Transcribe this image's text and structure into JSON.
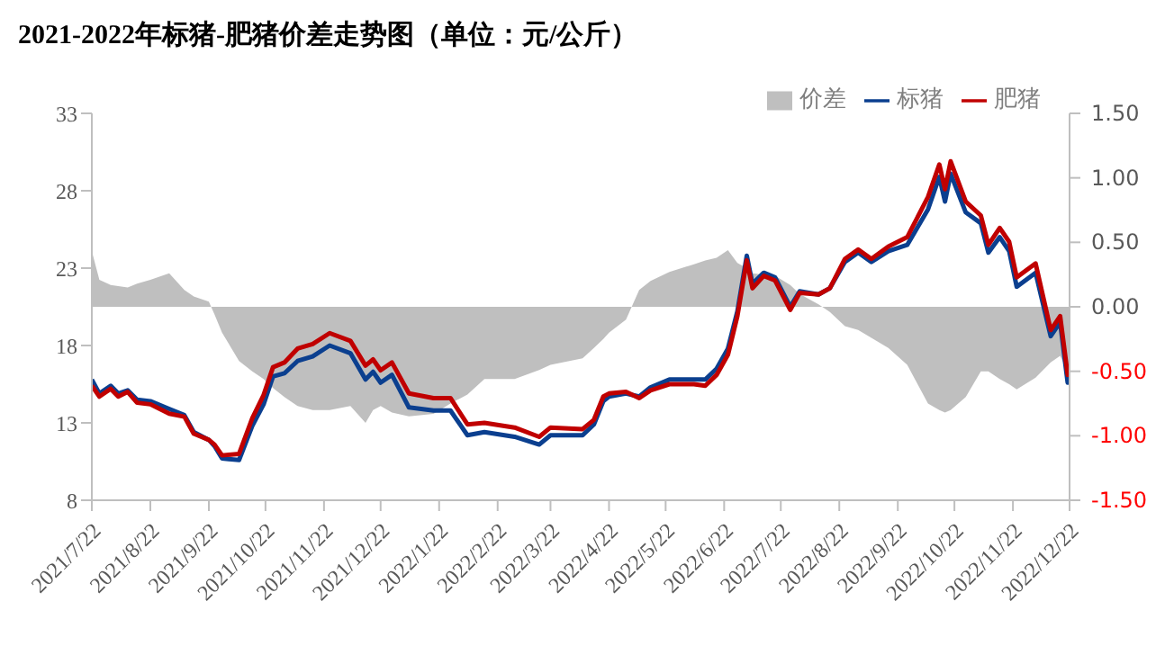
{
  "chart_data": {
    "type": "line",
    "title": "2021-2022年标猪-肥猪价差走势图（单位：元/公斤）",
    "x": [
      "2021-07-22",
      "2021-07-26",
      "2021-08-01",
      "2021-08-05",
      "2021-08-10",
      "2021-08-15",
      "2021-08-22",
      "2021-09-01",
      "2021-09-09",
      "2021-09-14",
      "2021-09-22",
      "2021-09-25",
      "2021-09-29",
      "2021-10-08",
      "2021-10-15",
      "2021-10-21",
      "2021-10-26",
      "2021-11-01",
      "2021-11-08",
      "2021-11-16",
      "2021-11-25",
      "2021-12-06",
      "2021-12-14",
      "2021-12-18",
      "2021-12-22",
      "2021-12-28",
      "2022-01-06",
      "2022-01-19",
      "2022-01-28",
      "2022-02-06",
      "2022-02-15",
      "2022-03-03",
      "2022-03-16",
      "2022-03-22",
      "2022-04-08",
      "2022-04-14",
      "2022-04-19",
      "2022-04-22",
      "2022-05-01",
      "2022-05-08",
      "2022-05-14",
      "2022-05-24",
      "2022-06-06",
      "2022-06-12",
      "2022-06-18",
      "2022-06-24",
      "2022-06-29",
      "2022-07-04",
      "2022-07-07",
      "2022-07-13",
      "2022-07-19",
      "2022-07-27",
      "2022-08-01",
      "2022-08-11",
      "2022-08-17",
      "2022-08-25",
      "2022-09-01",
      "2022-09-08",
      "2022-09-17",
      "2022-09-27",
      "2022-10-08",
      "2022-10-14",
      "2022-10-17",
      "2022-10-20",
      "2022-10-28",
      "2022-11-05",
      "2022-11-09",
      "2022-11-15",
      "2022-11-20",
      "2022-11-24",
      "2022-12-04",
      "2022-12-12",
      "2022-12-17",
      "2022-12-21",
      "2022-12-22"
    ],
    "series": [
      {
        "name": "价差",
        "type": "area",
        "axis": "y2",
        "color": "#bfbfbf",
        "values": [
          0.43,
          0.21,
          0.17,
          0.16,
          0.15,
          0.18,
          0.21,
          0.26,
          0.13,
          0.08,
          0.04,
          -0.06,
          -0.2,
          -0.42,
          -0.5,
          -0.56,
          -0.63,
          -0.7,
          -0.77,
          -0.8,
          -0.8,
          -0.77,
          -0.9,
          -0.8,
          -0.77,
          -0.82,
          -0.85,
          -0.83,
          -0.75,
          -0.68,
          -0.56,
          -0.56,
          -0.49,
          -0.45,
          -0.4,
          -0.32,
          -0.25,
          -0.2,
          -0.1,
          0.13,
          0.2,
          0.27,
          0.33,
          0.36,
          0.38,
          0.44,
          0.34,
          0.3,
          0.26,
          0.25,
          0.24,
          0.17,
          0.1,
          0.02,
          -0.04,
          -0.15,
          -0.18,
          -0.24,
          -0.32,
          -0.45,
          -0.75,
          -0.8,
          -0.82,
          -0.8,
          -0.7,
          -0.5,
          -0.5,
          -0.56,
          -0.6,
          -0.64,
          -0.55,
          -0.43,
          -0.38,
          -0.5,
          -0.6
        ]
      },
      {
        "name": "标猪",
        "color": "#0b3f8f",
        "values": [
          15.8,
          14.9,
          15.4,
          14.9,
          15.1,
          14.5,
          14.4,
          13.9,
          13.5,
          12.4,
          11.9,
          11.5,
          10.7,
          10.6,
          12.8,
          14.2,
          16.0,
          16.2,
          17.0,
          17.3,
          18.0,
          17.5,
          15.8,
          16.3,
          15.6,
          16.1,
          14.0,
          13.8,
          13.8,
          12.2,
          12.4,
          12.1,
          11.6,
          12.2,
          12.2,
          12.9,
          14.4,
          14.7,
          14.9,
          14.7,
          15.3,
          15.8,
          15.8,
          15.8,
          16.5,
          17.8,
          20.2,
          23.8,
          22.0,
          22.7,
          22.4,
          20.5,
          21.5,
          21.3,
          21.7,
          23.4,
          24.0,
          23.4,
          24.1,
          24.5,
          26.8,
          28.9,
          27.3,
          29.1,
          26.6,
          25.9,
          24.0,
          25.0,
          24.1,
          21.8,
          22.7,
          18.6,
          19.5,
          15.6,
          16.0
        ]
      },
      {
        "name": "肥猪",
        "color": "#c00000",
        "values": [
          15.4,
          14.7,
          15.2,
          14.7,
          15.0,
          14.3,
          14.2,
          13.6,
          13.4,
          12.3,
          11.9,
          11.6,
          10.9,
          11.0,
          13.3,
          14.8,
          16.6,
          16.9,
          17.8,
          18.1,
          18.8,
          18.3,
          16.7,
          17.1,
          16.4,
          16.9,
          14.9,
          14.6,
          14.6,
          12.9,
          13.0,
          12.7,
          12.1,
          12.7,
          12.6,
          13.2,
          14.7,
          14.9,
          15.0,
          14.6,
          15.1,
          15.5,
          15.5,
          15.4,
          16.1,
          17.4,
          19.9,
          23.5,
          21.7,
          22.5,
          22.2,
          20.3,
          21.4,
          21.3,
          21.7,
          23.6,
          24.2,
          23.6,
          24.4,
          25.0,
          27.6,
          29.7,
          28.1,
          29.9,
          27.3,
          26.4,
          24.5,
          25.6,
          24.7,
          22.4,
          23.3,
          19.0,
          19.9,
          16.1,
          16.6
        ]
      }
    ],
    "xlim": [
      "2021-07-22",
      "2022-12-22"
    ],
    "xticks": [
      {
        "value": "2021-07-22",
        "label": "2021/7/22"
      },
      {
        "value": "2021-08-22",
        "label": "2021/8/22"
      },
      {
        "value": "2021-09-22",
        "label": "2021/9/22"
      },
      {
        "value": "2021-10-22",
        "label": "2021/10/22"
      },
      {
        "value": "2021-11-22",
        "label": "2021/11/22"
      },
      {
        "value": "2021-12-22",
        "label": "2021/12/22"
      },
      {
        "value": "2022-01-22",
        "label": "2022/1/22"
      },
      {
        "value": "2022-02-22",
        "label": "2022/2/22"
      },
      {
        "value": "2022-03-22",
        "label": "2022/3/22"
      },
      {
        "value": "2022-04-22",
        "label": "2022/4/22"
      },
      {
        "value": "2022-05-22",
        "label": "2022/5/22"
      },
      {
        "value": "2022-06-22",
        "label": "2022/6/22"
      },
      {
        "value": "2022-07-22",
        "label": "2022/7/22"
      },
      {
        "value": "2022-08-22",
        "label": "2022/8/22"
      },
      {
        "value": "2022-09-22",
        "label": "2022/9/22"
      },
      {
        "value": "2022-10-22",
        "label": "2022/10/22"
      },
      {
        "value": "2022-11-22",
        "label": "2022/11/22"
      },
      {
        "value": "2022-12-22",
        "label": "2022/12/22"
      }
    ],
    "ylim": [
      8,
      33
    ],
    "yticks": [
      8,
      13,
      18,
      23,
      28,
      33
    ],
    "y2lim": [
      -1.5,
      1.5
    ],
    "y2ticks": [
      {
        "value": -1.5,
        "label": "-1.50"
      },
      {
        "value": -1,
        "label": "-1.00"
      },
      {
        "value": -0.5,
        "label": "-0.50"
      },
      {
        "value": 0,
        "label": "0.00"
      },
      {
        "value": 0.5,
        "label": "0.50"
      },
      {
        "value": 1,
        "label": "1.00"
      },
      {
        "value": 1.5,
        "label": "1.50"
      }
    ],
    "legend": "top right"
  }
}
